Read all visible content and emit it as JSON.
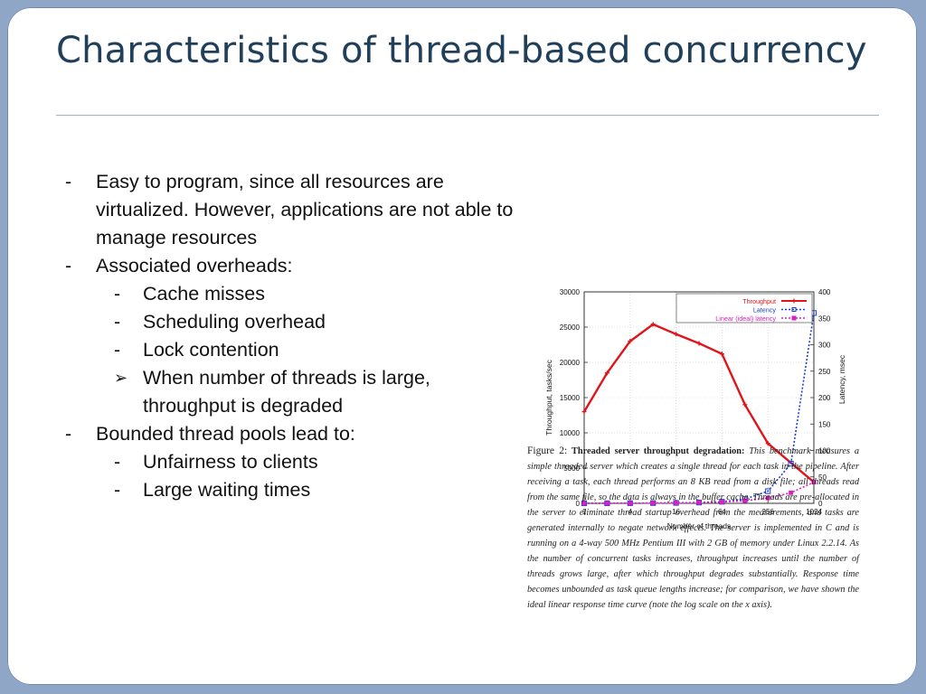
{
  "slide": {
    "title": "Characteristics of  thread-based concurrency",
    "bullets": [
      {
        "marker": "-",
        "text": "Easy to program, since all resources are virtualized. However, applications are not able to manage resources"
      },
      {
        "marker": "-",
        "text": "Associated overheads:"
      },
      {
        "marker": "-",
        "text": "Cache misses"
      },
      {
        "marker": "-",
        "text": "Scheduling overhead"
      },
      {
        "marker": "-",
        "text": "Lock contention"
      },
      {
        "marker": "➢",
        "text": "When number of threads is large, throughput is degraded"
      },
      {
        "marker": "-",
        "text": "Bounded thread pools lead to:"
      },
      {
        "marker": "-",
        "text": "Unfairness to clients"
      },
      {
        "marker": "-",
        "text": "Large waiting times"
      }
    ]
  },
  "figure": {
    "caption_label": "Figure 2:",
    "caption_bold": "Threaded server throughput degradation:",
    "caption_text": "This benchmark measures a simple threaded server which creates a single thread for each task in the pipeline. After receiving a task, each thread performs an 8 KB read from a disk file; all threads read from the same file, so the data is always in the buffer cache. Threads are pre-allocated in the server to eliminate thread startup overhead from the measurements, and tasks are generated internally to negate network effects. The server is implemented in C and is running on a 4-way 500 MHz Pentium III with 2 GB of memory under Linux 2.2.14. As the number of concurrent tasks increases, throughput increases until the number of threads grows large, after which throughput degrades substantially. Response time becomes unbounded as task queue lengths increase; for comparison, we have shown the ideal linear response time curve (note the log scale on the x axis)."
  },
  "chart_data": {
    "type": "line",
    "xlabel": "Number of threads",
    "ylabel": "Throughput, tasks/sec",
    "y2label": "Latency, msec",
    "x_scale": "log2",
    "x_tick_labels": [
      "1",
      "4",
      "16",
      "64",
      "256",
      "1024"
    ],
    "x_tick_values": [
      1,
      4,
      16,
      64,
      256,
      1024
    ],
    "ylim": [
      0,
      30000
    ],
    "y_ticks": [
      "0",
      "5000",
      "10000",
      "15000",
      "20000",
      "25000",
      "30000"
    ],
    "y2lim": [
      0,
      400
    ],
    "y2_ticks": [
      "0",
      "50",
      "100",
      "150",
      "200",
      "250",
      "300",
      "350",
      "400"
    ],
    "grid": true,
    "legend_position": "top-right",
    "colors": {
      "throughput": "#e0151b",
      "latency": "#1d3fd1",
      "linear": "#e01fbf"
    },
    "series": [
      {
        "name": "Throughput",
        "axis": "left",
        "style": "solid",
        "marker": "plus",
        "x": [
          1,
          2,
          4,
          8,
          16,
          32,
          64,
          128,
          256,
          1024
        ],
        "y": [
          13000,
          18500,
          23000,
          25400,
          24000,
          22700,
          21200,
          14000,
          8500,
          3000
        ]
      },
      {
        "name": "Latency",
        "axis": "right",
        "style": "dotted",
        "marker": "square",
        "x": [
          1,
          2,
          4,
          8,
          16,
          32,
          64,
          128,
          256,
          512,
          1024
        ],
        "y": [
          0.1,
          0.2,
          0.3,
          0.5,
          0.8,
          1.5,
          3,
          8,
          23,
          75,
          360
        ]
      },
      {
        "name": "Linear (ideal) latency",
        "axis": "right",
        "style": "dotted",
        "marker": "square-small",
        "x": [
          1,
          2,
          4,
          8,
          16,
          32,
          64,
          128,
          256,
          512,
          1024
        ],
        "y": [
          0.2,
          0.2,
          0.3,
          0.5,
          0.8,
          1.5,
          2.5,
          5,
          10,
          20,
          40
        ]
      }
    ]
  }
}
